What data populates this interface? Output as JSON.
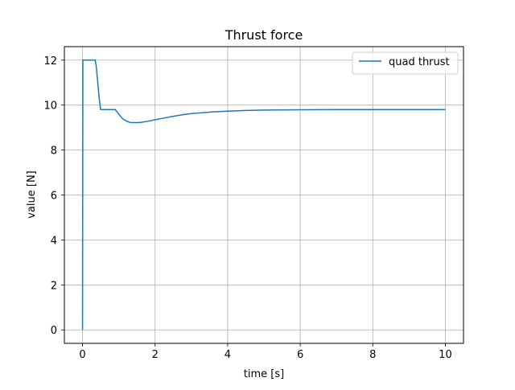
{
  "chart_data": {
    "type": "line",
    "title": "Thrust force",
    "xlabel": "time [s]",
    "ylabel": "value [N]",
    "xlim": [
      -0.5,
      10.5
    ],
    "ylim": [
      -0.6,
      12.6
    ],
    "xticks": [
      0,
      2,
      4,
      6,
      8,
      10
    ],
    "yticks": [
      0,
      2,
      4,
      6,
      8,
      10,
      12
    ],
    "xtick_labels": [
      "0",
      "2",
      "4",
      "6",
      "8",
      "10"
    ],
    "ytick_labels": [
      "0",
      "2",
      "4",
      "6",
      "8",
      "10",
      "12"
    ],
    "grid": true,
    "legend_position": "upper-right",
    "series": [
      {
        "name": "quad thrust",
        "color": "#1f77b4",
        "x": [
          0,
          0.01,
          0.35,
          0.38,
          0.42,
          0.46,
          0.5,
          0.9,
          1.0,
          1.1,
          1.2,
          1.3,
          1.4,
          1.5,
          1.6,
          1.8,
          2.0,
          2.2,
          2.5,
          2.8,
          3.0,
          3.3,
          3.6,
          4.0,
          4.5,
          5.0,
          6.0,
          7.0,
          8.0,
          9.0,
          10.0
        ],
        "y": [
          0,
          12,
          12,
          11.7,
          11.0,
          10.3,
          9.8,
          9.8,
          9.6,
          9.4,
          9.3,
          9.23,
          9.22,
          9.22,
          9.23,
          9.28,
          9.35,
          9.41,
          9.5,
          9.58,
          9.62,
          9.66,
          9.7,
          9.73,
          9.76,
          9.78,
          9.79,
          9.8,
          9.8,
          9.8,
          9.8
        ]
      }
    ]
  }
}
